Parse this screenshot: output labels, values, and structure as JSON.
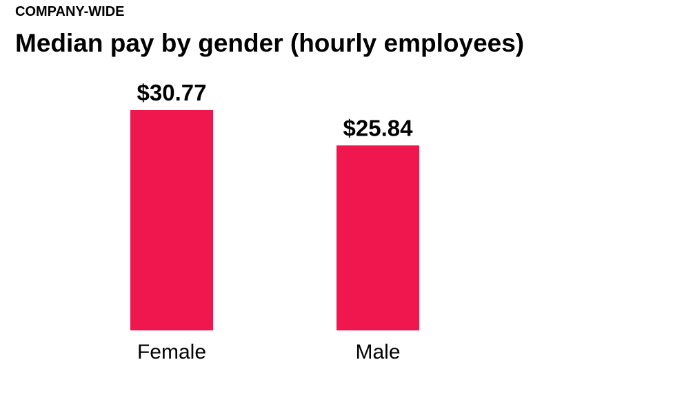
{
  "header": {
    "kicker": "COMPANY-WIDE",
    "title": "Median pay by gender (hourly employees)"
  },
  "chart_data": {
    "type": "bar",
    "categories": [
      "Female",
      "Male"
    ],
    "values": [
      30.77,
      25.84
    ],
    "value_labels": [
      "$30.77",
      "$25.84"
    ],
    "title": "Median pay by gender (hourly employees)",
    "subtitle": "COMPANY-WIDE",
    "xlabel": "",
    "ylabel": "",
    "ylim": [
      0,
      30.77
    ],
    "grid": false,
    "legend": "none",
    "bar_color": "#f0174f"
  }
}
